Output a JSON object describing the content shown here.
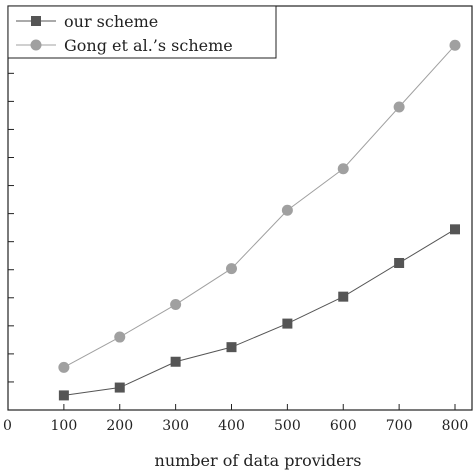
{
  "chart_data": {
    "type": "line",
    "xlabel": "number of data providers",
    "ylabel": "",
    "x": [
      100,
      200,
      300,
      400,
      500,
      600,
      700,
      800
    ],
    "xlim": [
      0,
      800
    ],
    "ylim": [
      0,
      36
    ],
    "xticks": [
      0,
      100,
      200,
      300,
      400,
      500,
      600,
      700,
      800
    ],
    "yticks": [
      0,
      2.5,
      5,
      7.5,
      10,
      12.5,
      15,
      17.5,
      20,
      22.5,
      25,
      27.5,
      30,
      32.5,
      35
    ],
    "grid": false,
    "legend_position": "top-left",
    "series": [
      {
        "name": "our scheme",
        "marker": "square",
        "color": "#555555",
        "values": [
          1.3,
          2.0,
          4.3,
          5.6,
          7.7,
          10.1,
          13.1,
          16.1
        ]
      },
      {
        "name": "Gong et al.'s scheme",
        "marker": "circle",
        "color": "#a0a0a0",
        "values": [
          3.8,
          6.5,
          9.4,
          12.6,
          17.8,
          21.5,
          27.0,
          32.5
        ]
      }
    ],
    "legend_labels": [
      "our scheme",
      "Gong et al.’s scheme"
    ]
  }
}
